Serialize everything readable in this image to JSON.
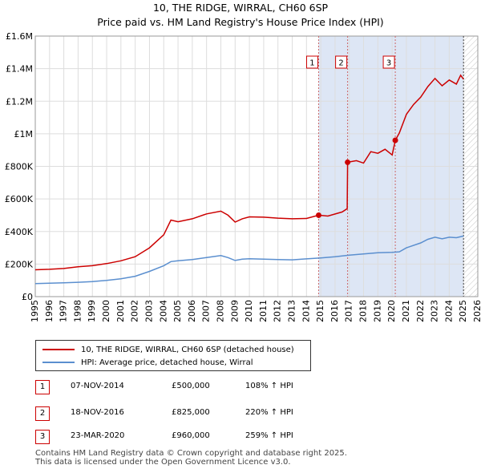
{
  "title": "10, THE RIDGE, WIRRAL, CH60 6SP",
  "subtitle": "Price paid vs. HM Land Registry's House Price Index (HPI)",
  "colors": {
    "property": "#cc0000",
    "hpi": "#5b8fcf",
    "shade": "#dde6f5",
    "grid": "#dddddd"
  },
  "chart_data": {
    "type": "line",
    "xlim": [
      1995,
      2026
    ],
    "ylim": [
      0,
      1600000
    ],
    "x_ticks": [
      "1995",
      "1996",
      "1997",
      "1998",
      "1999",
      "2000",
      "2001",
      "2002",
      "2003",
      "2004",
      "2005",
      "2006",
      "2007",
      "2008",
      "2009",
      "2010",
      "2011",
      "2012",
      "2013",
      "2014",
      "2015",
      "2016",
      "2017",
      "2018",
      "2019",
      "2020",
      "2021",
      "2022",
      "2023",
      "2024",
      "2025",
      "2026"
    ],
    "y_ticks": [
      {
        "value": 0,
        "label": "£0"
      },
      {
        "value": 200000,
        "label": "£200K"
      },
      {
        "value": 400000,
        "label": "£400K"
      },
      {
        "value": 600000,
        "label": "£600K"
      },
      {
        "value": 800000,
        "label": "£800K"
      },
      {
        "value": 1000000,
        "label": "£1M"
      },
      {
        "value": 1200000,
        "label": "£1.2M"
      },
      {
        "value": 1400000,
        "label": "£1.4M"
      },
      {
        "value": 1600000,
        "label": "£1.6M"
      }
    ],
    "series": [
      {
        "name": "10, THE RIDGE, WIRRAL, CH60 6SP (detached house)",
        "points": [
          [
            1995,
            165000
          ],
          [
            1996,
            168000
          ],
          [
            1997,
            173000
          ],
          [
            1998,
            183000
          ],
          [
            1999,
            190000
          ],
          [
            2000,
            203000
          ],
          [
            2001,
            220000
          ],
          [
            2002,
            245000
          ],
          [
            2003,
            300000
          ],
          [
            2004,
            380000
          ],
          [
            2004.5,
            470000
          ],
          [
            2005,
            460000
          ],
          [
            2006,
            478000
          ],
          [
            2007,
            508000
          ],
          [
            2008,
            525000
          ],
          [
            2008.5,
            500000
          ],
          [
            2009,
            458000
          ],
          [
            2009.5,
            478000
          ],
          [
            2010,
            490000
          ],
          [
            2011,
            488000
          ],
          [
            2012,
            482000
          ],
          [
            2013,
            478000
          ],
          [
            2014,
            480000
          ],
          [
            2014.85,
            500000
          ],
          [
            2015.5,
            495000
          ],
          [
            2016.5,
            520000
          ],
          [
            2016.85,
            540000
          ],
          [
            2016.88,
            825000
          ],
          [
            2017.5,
            835000
          ],
          [
            2018,
            820000
          ],
          [
            2018.5,
            890000
          ],
          [
            2019,
            880000
          ],
          [
            2019.5,
            905000
          ],
          [
            2020,
            870000
          ],
          [
            2020.22,
            960000
          ],
          [
            2020.5,
            1005000
          ],
          [
            2021,
            1120000
          ],
          [
            2021.5,
            1180000
          ],
          [
            2022,
            1225000
          ],
          [
            2022.5,
            1290000
          ],
          [
            2023,
            1340000
          ],
          [
            2023.5,
            1295000
          ],
          [
            2024,
            1330000
          ],
          [
            2024.5,
            1305000
          ],
          [
            2024.8,
            1360000
          ],
          [
            2025,
            1335000
          ]
        ]
      },
      {
        "name": "HPI: Average price, detached house, Wirral",
        "points": [
          [
            1995,
            80000
          ],
          [
            1996,
            82000
          ],
          [
            1997,
            85000
          ],
          [
            1998,
            88000
          ],
          [
            1999,
            92000
          ],
          [
            2000,
            100000
          ],
          [
            2001,
            110000
          ],
          [
            2002,
            125000
          ],
          [
            2003,
            155000
          ],
          [
            2004,
            190000
          ],
          [
            2004.5,
            215000
          ],
          [
            2005,
            220000
          ],
          [
            2006,
            228000
          ],
          [
            2007,
            240000
          ],
          [
            2008,
            252000
          ],
          [
            2008.5,
            240000
          ],
          [
            2009,
            222000
          ],
          [
            2009.5,
            230000
          ],
          [
            2010,
            233000
          ],
          [
            2011,
            230000
          ],
          [
            2012,
            228000
          ],
          [
            2013,
            226000
          ],
          [
            2014,
            232000
          ],
          [
            2015,
            238000
          ],
          [
            2016,
            245000
          ],
          [
            2017,
            255000
          ],
          [
            2018,
            262000
          ],
          [
            2019,
            270000
          ],
          [
            2020,
            272000
          ],
          [
            2020.5,
            275000
          ],
          [
            2021,
            300000
          ],
          [
            2022,
            330000
          ],
          [
            2022.5,
            352000
          ],
          [
            2023,
            365000
          ],
          [
            2023.5,
            355000
          ],
          [
            2024,
            365000
          ],
          [
            2024.5,
            362000
          ],
          [
            2025,
            372000
          ]
        ]
      }
    ],
    "sales": [
      {
        "num": "1",
        "date": "07-NOV-2014",
        "x": 2014.85,
        "price_label": "£500,000",
        "hpi_change": "108% ↑ HPI",
        "price": 500000
      },
      {
        "num": "2",
        "date": "18-NOV-2016",
        "x": 2016.88,
        "price_label": "£825,000",
        "hpi_change": "220% ↑ HPI",
        "price": 825000
      },
      {
        "num": "3",
        "date": "23-MAR-2020",
        "x": 2020.22,
        "price_label": "£960,000",
        "hpi_change": "259% ↑ HPI",
        "price": 960000
      }
    ]
  },
  "footer": {
    "line1": "Contains HM Land Registry data © Crown copyright and database right 2025.",
    "line2": "This data is licensed under the Open Government Licence v3.0."
  }
}
